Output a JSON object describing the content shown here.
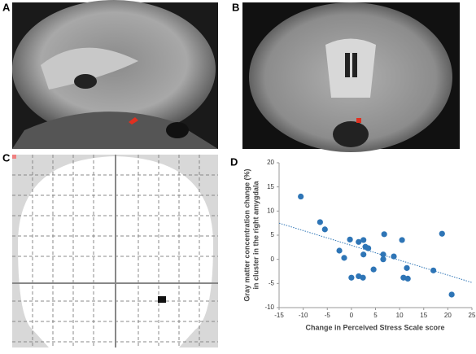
{
  "panel_labels": [
    "A",
    "B",
    "C",
    "D"
  ],
  "chart_data": {
    "type": "scatter",
    "xlabel": "Change in Perceived Stress Scale score",
    "ylabel": [
      "Gray matter concentration change (%)",
      "in cluster in the right amygdala"
    ],
    "x": [
      -10.5,
      -6.5,
      -5.5,
      -2.5,
      -1.5,
      -0.3,
      0,
      1.5,
      2.5,
      2.9,
      2.5,
      3.5,
      2.4,
      1.5,
      4.6,
      6.8,
      6.6,
      6.6,
      8.8,
      10.5,
      10.8,
      11.5,
      11.7,
      17,
      18.8,
      20.8
    ],
    "values": [
      13,
      7.7,
      6.2,
      1.8,
      0.3,
      4.1,
      -3.8,
      3.6,
      4,
      2.6,
      1,
      2.3,
      -3.8,
      -3.5,
      -2.1,
      5.2,
      1,
      0,
      0.6,
      4,
      -3.8,
      -1.8,
      -4,
      -2.3,
      5.3,
      -7.3
    ],
    "color": "#2e75b6",
    "trendline": {
      "x": [
        -15,
        25
      ],
      "y": [
        7.5,
        -4.8
      ]
    },
    "xlim": [
      -15,
      25
    ],
    "xticks": [
      -15,
      -10,
      -5,
      0,
      5,
      10,
      15,
      20,
      25
    ],
    "ylim": [
      -10,
      20
    ],
    "yticks": [
      -10,
      -5,
      0,
      5,
      10,
      15,
      20
    ]
  }
}
